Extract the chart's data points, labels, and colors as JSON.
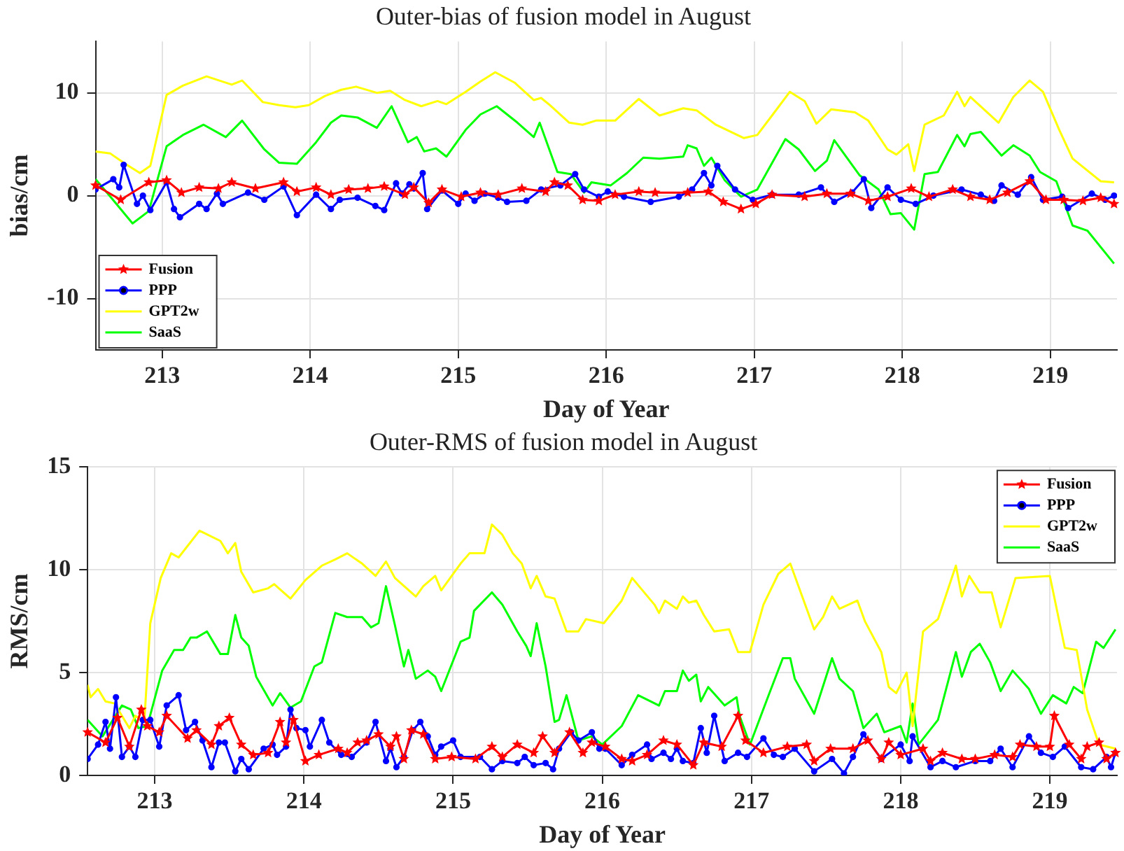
{
  "chart_data": [
    {
      "type": "line",
      "title": "Outer-bias of fusion model in August",
      "xlabel": "Day of Year",
      "ylabel": "bias/cm",
      "xlim": [
        212.55,
        219.45
      ],
      "xticks": [
        213,
        214,
        215,
        216,
        217,
        218,
        219
      ],
      "ylim": [
        -15,
        15
      ],
      "yticks": [
        -10,
        0,
        10
      ],
      "grid": true,
      "legend": "bottom left",
      "line_style": "solid",
      "series": [
        {
          "name": "Fusion",
          "color": "#ff0000",
          "marker": "star",
          "x": [
            212.55,
            212.72,
            212.91,
            213.03,
            213.13,
            213.25,
            213.38,
            213.47,
            213.63,
            213.82,
            213.91,
            214.04,
            214.14,
            214.26,
            214.39,
            214.5,
            214.64,
            214.7,
            214.8,
            214.89,
            215.02,
            215.15,
            215.27,
            215.43,
            215.59,
            215.65,
            215.74,
            215.84,
            215.95,
            216.06,
            216.22,
            216.33,
            216.55,
            216.69,
            216.79,
            216.91,
            217.01,
            217.12,
            217.34,
            217.49,
            217.65,
            217.77,
            217.9,
            218.06,
            218.18,
            218.34,
            218.46,
            218.59,
            218.71,
            218.86,
            218.97,
            219.09,
            219.22,
            219.34,
            219.43
          ],
          "values": [
            1.0,
            -0.4,
            1.3,
            1.5,
            0.3,
            0.8,
            0.7,
            1.3,
            0.7,
            1.3,
            0.4,
            0.8,
            0.1,
            0.6,
            0.7,
            0.9,
            0.1,
            0.8,
            -0.7,
            0.6,
            -0.1,
            0.3,
            0.1,
            0.7,
            0.4,
            1.3,
            1.0,
            -0.4,
            -0.5,
            0.1,
            0.4,
            0.3,
            0.3,
            0.4,
            -0.6,
            -1.3,
            -0.8,
            0.1,
            -0.1,
            0.2,
            0.2,
            -0.5,
            -0.1,
            0.7,
            -0.1,
            0.6,
            -0.1,
            -0.4,
            0.3,
            1.4,
            -0.4,
            -0.4,
            -0.5,
            -0.2,
            -0.8
          ]
        },
        {
          "name": "PPP",
          "color": "#0000ff",
          "marker": "circle",
          "x": [
            212.55,
            212.67,
            212.71,
            212.74,
            212.83,
            212.87,
            212.92,
            213.03,
            213.08,
            213.12,
            213.25,
            213.3,
            213.37,
            213.41,
            213.58,
            213.69,
            213.82,
            213.91,
            214.04,
            214.14,
            214.2,
            214.32,
            214.44,
            214.5,
            214.58,
            214.62,
            214.67,
            214.7,
            214.76,
            214.79,
            214.89,
            215.0,
            215.05,
            215.11,
            215.18,
            215.27,
            215.33,
            215.46,
            215.56,
            215.69,
            215.79,
            215.85,
            215.95,
            216.01,
            216.12,
            216.3,
            216.49,
            216.58,
            216.66,
            216.71,
            216.75,
            216.87,
            216.99,
            217.12,
            217.3,
            217.45,
            217.54,
            217.66,
            217.74,
            217.79,
            217.9,
            217.99,
            218.09,
            218.21,
            218.4,
            218.53,
            218.62,
            218.67,
            218.78,
            218.87,
            218.95,
            219.08,
            219.12,
            219.28,
            219.37,
            219.43
          ],
          "values": [
            0.6,
            1.6,
            0.8,
            3.0,
            -0.8,
            0,
            -1.4,
            1.3,
            -1.3,
            -2.1,
            -0.8,
            -1.3,
            0.2,
            -0.8,
            0.3,
            -0.4,
            0.9,
            -1.9,
            0.1,
            -1.3,
            -0.4,
            -0.2,
            -1.0,
            -1.4,
            1.2,
            0.2,
            1.1,
            0.7,
            2.2,
            -1.3,
            0.5,
            -0.8,
            0.2,
            -0.5,
            0.2,
            -0.2,
            -0.6,
            -0.5,
            0.6,
            1.0,
            2.1,
            0.6,
            -0.1,
            0.4,
            -0.1,
            -0.6,
            -0.1,
            0.6,
            2.2,
            1.0,
            2.9,
            0.6,
            -0.4,
            0.1,
            0.1,
            0.8,
            -0.6,
            0.3,
            1.6,
            -1.2,
            0.8,
            -0.4,
            -0.8,
            0,
            0.6,
            0.1,
            -0.5,
            1.0,
            0.1,
            1.8,
            -0.4,
            -0.1,
            -1.2,
            0.2,
            -0.4,
            0
          ]
        },
        {
          "name": "GPT2w",
          "color": "#ffff00",
          "x": [
            212.55,
            212.65,
            212.75,
            212.85,
            212.92,
            213.03,
            213.14,
            213.3,
            213.47,
            213.54,
            213.68,
            213.79,
            213.9,
            213.99,
            214.1,
            214.21,
            214.31,
            214.45,
            214.54,
            214.64,
            214.75,
            214.86,
            214.92,
            215.05,
            215.15,
            215.25,
            215.38,
            215.51,
            215.56,
            215.62,
            215.75,
            215.84,
            215.93,
            216.06,
            216.22,
            216.36,
            216.52,
            216.61,
            216.74,
            216.93,
            217.02,
            217.12,
            217.24,
            217.34,
            217.42,
            217.52,
            217.68,
            217.77,
            217.9,
            217.96,
            218.04,
            218.08,
            218.15,
            218.28,
            218.37,
            218.42,
            218.46,
            218.65,
            218.75,
            218.86,
            218.95,
            219.06,
            219.15,
            219.34,
            219.43
          ],
          "values": [
            4.3,
            4.1,
            3.1,
            2.2,
            2.9,
            9.8,
            10.7,
            11.6,
            10.8,
            11.2,
            9.1,
            8.8,
            8.6,
            8.8,
            9.7,
            10.3,
            10.6,
            10.0,
            10.2,
            9.3,
            8.7,
            9.2,
            8.9,
            10.1,
            11.1,
            12.0,
            11.0,
            9.3,
            9.5,
            8.8,
            7.1,
            6.9,
            7.3,
            7.3,
            9.4,
            7.8,
            8.5,
            8.3,
            6.9,
            5.6,
            5.9,
            7.8,
            10.1,
            9.2,
            7.0,
            8.4,
            8.1,
            7.3,
            4.5,
            4.0,
            5.0,
            2.4,
            6.9,
            7.8,
            10.1,
            8.7,
            9.6,
            7.1,
            9.6,
            11.2,
            10.1,
            6.4,
            3.6,
            1.4,
            1.3
          ]
        },
        {
          "name": "SaaS",
          "color": "#00ff00",
          "x": [
            212.55,
            212.65,
            212.8,
            212.91,
            213.03,
            213.14,
            213.28,
            213.43,
            213.54,
            213.69,
            213.79,
            213.91,
            214.04,
            214.14,
            214.21,
            214.32,
            214.45,
            214.55,
            214.66,
            214.72,
            214.77,
            214.85,
            214.92,
            215.05,
            215.15,
            215.26,
            215.4,
            215.51,
            215.55,
            215.67,
            215.76,
            215.85,
            215.9,
            216.03,
            216.14,
            216.25,
            216.36,
            216.52,
            216.55,
            216.61,
            216.66,
            216.71,
            216.8,
            216.91,
            217.02,
            217.21,
            217.3,
            217.41,
            217.49,
            217.54,
            217.71,
            217.84,
            217.92,
            217.99,
            218.08,
            218.15,
            218.24,
            218.37,
            218.42,
            218.46,
            218.53,
            218.67,
            218.75,
            218.86,
            218.93,
            219.04,
            219.15,
            219.25,
            219.43
          ],
          "values": [
            1.6,
            -0.1,
            -2.7,
            -1.5,
            4.8,
            5.9,
            6.9,
            5.7,
            7.3,
            4.5,
            3.2,
            3.1,
            5.2,
            7.1,
            7.8,
            7.6,
            6.6,
            8.7,
            5.2,
            5.7,
            4.3,
            4.6,
            3.8,
            6.4,
            7.9,
            8.7,
            7.1,
            5.7,
            7.1,
            2.3,
            2.1,
            0.3,
            1.3,
            1.0,
            2.2,
            3.7,
            3.6,
            3.8,
            4.9,
            4.6,
            2.9,
            3.7,
            1.5,
            -0.1,
            0.6,
            5.5,
            4.5,
            2.4,
            3.4,
            5.4,
            2.0,
            0.6,
            -1.8,
            -1.7,
            -3.3,
            2.1,
            2.3,
            5.9,
            4.8,
            6.0,
            6.2,
            3.9,
            4.9,
            3.9,
            2.3,
            1.4,
            -2.9,
            -3.4,
            -6.6
          ]
        }
      ]
    },
    {
      "type": "line",
      "title": "Outer-RMS of fusion model in August",
      "xlabel": "Day of Year",
      "ylabel": "RMS/cm",
      "xlim": [
        212.55,
        219.45
      ],
      "xticks": [
        213,
        214,
        215,
        216,
        217,
        218,
        219
      ],
      "ylim": [
        0,
        15
      ],
      "yticks": [
        0,
        5,
        10,
        15
      ],
      "grid": true,
      "legend": "top right",
      "line_style": "solid",
      "series": [
        {
          "name": "Fusion",
          "color": "#ff0000",
          "marker": "star",
          "x": [
            212.55,
            212.67,
            212.75,
            212.83,
            212.91,
            212.95,
            213.03,
            213.08,
            213.22,
            213.28,
            213.38,
            213.43,
            213.5,
            213.58,
            213.66,
            213.76,
            213.84,
            213.88,
            213.93,
            214.01,
            214.1,
            214.23,
            214.29,
            214.36,
            214.42,
            214.5,
            214.58,
            214.62,
            214.67,
            214.72,
            214.8,
            214.88,
            214.99,
            215.15,
            215.26,
            215.33,
            215.43,
            215.54,
            215.6,
            215.68,
            215.78,
            215.87,
            215.93,
            216.02,
            216.13,
            216.2,
            216.3,
            216.41,
            216.5,
            216.61,
            216.68,
            216.8,
            216.91,
            216.96,
            217.08,
            217.24,
            217.37,
            217.42,
            217.53,
            217.68,
            217.78,
            217.87,
            217.92,
            218.0,
            218.15,
            218.2,
            218.28,
            218.41,
            218.5,
            218.63,
            218.75,
            218.8,
            218.91,
            219.0,
            219.03,
            219.13,
            219.21,
            219.25,
            219.33,
            219.38,
            219.44
          ],
          "values": [
            2.1,
            1.6,
            2.8,
            1.4,
            3.2,
            2.4,
            2.1,
            2.9,
            1.8,
            2.2,
            1.5,
            2.4,
            2.8,
            1.5,
            1.0,
            1.1,
            2.6,
            1.6,
            2.7,
            0.7,
            1.0,
            1.3,
            1.1,
            1.6,
            1.7,
            2.0,
            1.4,
            1.9,
            0.8,
            2.2,
            2.0,
            0.8,
            0.9,
            0.8,
            1.4,
            0.9,
            1.5,
            1.1,
            1.9,
            1.1,
            2.1,
            1.1,
            1.6,
            1.4,
            0.8,
            0.7,
            1.0,
            1.7,
            1.5,
            0.5,
            1.6,
            1.4,
            2.9,
            1.7,
            1.1,
            1.4,
            1.5,
            0.7,
            1.3,
            1.3,
            1.7,
            0.8,
            1.6,
            1.0,
            1.3,
            0.7,
            1.1,
            0.8,
            0.8,
            1.0,
            0.9,
            1.5,
            1.4,
            1.4,
            2.9,
            1.5,
            0.8,
            1.4,
            1.6,
            0.8,
            1.1
          ]
        },
        {
          "name": "PPP",
          "color": "#0000ff",
          "marker": "circle",
          "x": [
            212.55,
            212.62,
            212.67,
            212.7,
            212.74,
            212.78,
            212.83,
            212.87,
            212.92,
            212.97,
            213.03,
            213.08,
            213.16,
            213.21,
            213.27,
            213.32,
            213.38,
            213.43,
            213.47,
            213.54,
            213.58,
            213.63,
            213.73,
            213.79,
            213.82,
            213.88,
            213.91,
            213.95,
            214.01,
            214.04,
            214.12,
            214.17,
            214.25,
            214.32,
            214.42,
            214.48,
            214.55,
            214.58,
            214.62,
            214.67,
            214.73,
            214.78,
            214.83,
            214.88,
            214.92,
            215.0,
            215.05,
            215.18,
            215.26,
            215.33,
            215.43,
            215.48,
            215.54,
            215.62,
            215.67,
            215.71,
            215.79,
            215.84,
            215.93,
            215.98,
            216.02,
            216.13,
            216.2,
            216.3,
            216.33,
            216.41,
            216.46,
            216.5,
            216.54,
            216.61,
            216.66,
            216.7,
            216.75,
            216.82,
            216.91,
            216.97,
            217.08,
            217.15,
            217.21,
            217.29,
            217.42,
            217.54,
            217.62,
            217.68,
            217.75,
            217.87,
            218.0,
            218.06,
            218.08,
            218.2,
            218.28,
            218.37,
            218.5,
            218.6,
            218.67,
            218.75,
            218.86,
            218.94,
            219.02,
            219.1,
            219.21,
            219.29,
            219.38,
            219.41,
            219.44
          ],
          "values": [
            0.8,
            1.5,
            2.6,
            1.3,
            3.8,
            0.9,
            1.4,
            0.9,
            2.7,
            2.7,
            1.4,
            3.4,
            3.9,
            2.2,
            2.6,
            1.7,
            0.4,
            1.6,
            1.6,
            0.2,
            0.8,
            0.3,
            1.3,
            1.5,
            1.0,
            1.4,
            3.2,
            2.3,
            2.2,
            1.4,
            2.7,
            1.6,
            1.0,
            0.9,
            1.6,
            2.6,
            0.7,
            1.3,
            0.4,
            0.9,
            2.2,
            2.6,
            1.9,
            1.0,
            1.4,
            1.7,
            0.9,
            0.9,
            0.3,
            0.7,
            0.6,
            0.9,
            0.5,
            0.6,
            0.3,
            1.3,
            2.1,
            1.7,
            2.1,
            1.3,
            1.3,
            0.5,
            1.0,
            1.5,
            0.8,
            1.1,
            0.8,
            1.3,
            0.7,
            0.6,
            2.3,
            1.1,
            2.9,
            0.7,
            1.1,
            0.9,
            1.8,
            1.0,
            0.9,
            1.3,
            0.2,
            0.8,
            0.1,
            0.9,
            2.0,
            0.8,
            1.5,
            0.7,
            1.9,
            0.4,
            0.7,
            0.4,
            0.7,
            0.7,
            1.3,
            0.4,
            1.9,
            1.1,
            0.9,
            1.4,
            0.4,
            0.3,
            0.9,
            0.4,
            1.1
          ]
        },
        {
          "name": "GPT2w",
          "color": "#ffff00",
          "x": [
            212.55,
            212.57,
            212.62,
            212.67,
            212.73,
            212.83,
            212.87,
            212.93,
            212.97,
            213.04,
            213.11,
            213.16,
            213.3,
            213.44,
            213.49,
            213.54,
            213.58,
            213.66,
            213.76,
            213.8,
            213.91,
            214.01,
            214.12,
            214.21,
            214.29,
            214.39,
            214.48,
            214.55,
            214.61,
            214.75,
            214.8,
            214.88,
            214.92,
            215.05,
            215.11,
            215.21,
            215.26,
            215.33,
            215.4,
            215.46,
            215.52,
            215.56,
            215.62,
            215.68,
            215.76,
            215.84,
            215.89,
            216.01,
            216.13,
            216.2,
            216.35,
            216.38,
            216.42,
            216.5,
            216.54,
            216.58,
            216.63,
            216.68,
            216.75,
            216.85,
            216.91,
            216.99,
            217.08,
            217.18,
            217.26,
            217.31,
            217.42,
            217.48,
            217.54,
            217.59,
            217.71,
            217.76,
            217.87,
            217.92,
            217.97,
            218.04,
            218.08,
            218.15,
            218.25,
            218.37,
            218.41,
            218.46,
            218.53,
            218.61,
            218.67,
            218.77,
            219.0,
            219.1,
            219.18,
            219.25,
            219.33,
            219.44
          ],
          "values": [
            4.4,
            3.8,
            4.2,
            3.6,
            3.5,
            2.3,
            2.9,
            2.6,
            7.4,
            9.6,
            10.8,
            10.6,
            11.9,
            11.4,
            10.8,
            11.3,
            9.9,
            8.9,
            9.1,
            9.3,
            8.6,
            9.5,
            10.2,
            10.5,
            10.8,
            10.3,
            9.7,
            10.4,
            9.6,
            8.7,
            9.2,
            9.7,
            9.0,
            10.3,
            10.8,
            10.8,
            12.2,
            11.7,
            10.8,
            10.3,
            9.1,
            9.7,
            8.7,
            8.6,
            7.0,
            7.0,
            7.6,
            7.4,
            8.5,
            9.6,
            8.3,
            7.9,
            8.5,
            8.1,
            8.7,
            8.4,
            8.5,
            7.8,
            7.0,
            7.1,
            6.0,
            6.0,
            8.3,
            9.8,
            10.3,
            9.3,
            7.1,
            7.7,
            8.7,
            8.1,
            8.5,
            7.5,
            6.0,
            4.3,
            4.0,
            5.0,
            2.4,
            7.0,
            7.6,
            10.2,
            8.7,
            9.7,
            8.9,
            8.9,
            7.2,
            9.6,
            9.7,
            6.2,
            6.1,
            3.2,
            1.5,
            1.3
          ]
        },
        {
          "name": "SaaS",
          "color": "#00ff00",
          "x": [
            212.55,
            212.65,
            212.78,
            212.84,
            212.89,
            212.95,
            213.05,
            213.13,
            213.19,
            213.24,
            213.28,
            213.35,
            213.44,
            213.49,
            213.54,
            213.58,
            213.63,
            213.68,
            213.79,
            213.84,
            213.91,
            213.98,
            214.07,
            214.12,
            214.21,
            214.29,
            214.39,
            214.45,
            214.5,
            214.55,
            214.61,
            214.67,
            214.7,
            214.75,
            214.83,
            214.88,
            214.92,
            215.05,
            215.11,
            215.14,
            215.26,
            215.33,
            215.43,
            215.49,
            215.52,
            215.56,
            215.62,
            215.68,
            215.71,
            215.76,
            215.84,
            215.93,
            216.0,
            216.13,
            216.24,
            216.38,
            216.42,
            216.5,
            216.54,
            216.58,
            216.63,
            216.66,
            216.71,
            216.82,
            216.9,
            216.92,
            216.99,
            217.12,
            217.21,
            217.26,
            217.29,
            217.42,
            217.54,
            217.59,
            217.68,
            217.75,
            217.84,
            217.89,
            218.0,
            218.04,
            218.08,
            218.12,
            218.25,
            218.37,
            218.41,
            218.47,
            218.53,
            218.6,
            218.67,
            218.75,
            218.86,
            218.94,
            219.02,
            219.11,
            219.16,
            219.22,
            219.31,
            219.36,
            219.44
          ],
          "values": [
            2.7,
            1.9,
            3.4,
            3.2,
            2.3,
            2.4,
            5.1,
            6.1,
            6.1,
            6.7,
            6.7,
            7.0,
            5.9,
            5.9,
            7.8,
            6.7,
            6.3,
            4.8,
            3.4,
            4.0,
            3.3,
            3.6,
            5.3,
            5.5,
            7.9,
            7.7,
            7.7,
            7.2,
            7.4,
            9.2,
            7.3,
            5.3,
            6.1,
            4.7,
            5.1,
            4.8,
            4.1,
            6.5,
            6.7,
            8.0,
            8.9,
            8.3,
            7.0,
            6.3,
            5.8,
            7.4,
            5.3,
            2.6,
            2.7,
            3.9,
            1.7,
            1.9,
            1.5,
            2.4,
            3.9,
            3.4,
            4.1,
            4.1,
            5.1,
            4.6,
            4.9,
            3.6,
            4.3,
            3.4,
            3.8,
            2.9,
            1.5,
            4.0,
            5.7,
            5.7,
            4.7,
            3.0,
            5.7,
            4.7,
            4.1,
            2.3,
            3.0,
            2.1,
            2.4,
            1.6,
            3.5,
            1.5,
            2.7,
            6.0,
            4.8,
            6.0,
            6.4,
            5.5,
            4.1,
            5.1,
            4.2,
            3.0,
            3.9,
            3.5,
            4.3,
            4.0,
            6.5,
            6.2,
            7.1
          ]
        }
      ]
    }
  ]
}
